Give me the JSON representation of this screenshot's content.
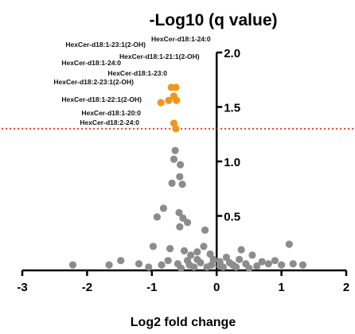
{
  "chart_data": {
    "type": "scatter",
    "title": "-Log10 (q value)",
    "xlabel": "Log2 fold change",
    "ylabel": "",
    "xlim": [
      -3,
      2
    ],
    "ylim": [
      0,
      2.0
    ],
    "x_ticks": [
      "-3",
      "-2",
      "-1",
      "0",
      "1",
      "2"
    ],
    "y_ticks": [
      "0.5",
      "1.0",
      "1.5",
      "2.0"
    ],
    "threshold": 1.3,
    "colors": {
      "significant": "#f0961e",
      "nonsignificant": "#8c8c8c",
      "threshold_line": "#e8402a",
      "axis": "#000000"
    },
    "series": [
      {
        "points": [
          {
            "x": -0.7,
            "y": 1.68
          },
          {
            "x": -0.63,
            "y": 1.68
          },
          {
            "x": -0.66,
            "y": 1.6
          },
          {
            "x": -0.74,
            "y": 1.56
          },
          {
            "x": -0.62,
            "y": 1.56
          },
          {
            "x": -0.86,
            "y": 1.54
          },
          {
            "x": -0.66,
            "y": 1.35
          },
          {
            "x": -0.63,
            "y": 1.3
          }
        ]
      },
      {
        "points": [
          {
            "x": -0.64,
            "y": 1.1
          },
          {
            "x": -0.66,
            "y": 1.02
          },
          {
            "x": -0.56,
            "y": 0.97
          },
          {
            "x": -0.57,
            "y": 0.86
          },
          {
            "x": -0.69,
            "y": 0.8
          },
          {
            "x": -0.53,
            "y": 0.79
          },
          {
            "x": -0.82,
            "y": 0.57
          },
          {
            "x": -0.58,
            "y": 0.53
          },
          {
            "x": -0.52,
            "y": 0.48
          },
          {
            "x": -0.45,
            "y": 0.44
          },
          {
            "x": -0.92,
            "y": 0.49
          },
          {
            "x": -0.57,
            "y": 0.4
          },
          {
            "x": -0.18,
            "y": 0.37
          },
          {
            "x": -0.98,
            "y": 0.22
          },
          {
            "x": -0.72,
            "y": 0.2
          },
          {
            "x": -0.5,
            "y": 0.18
          },
          {
            "x": -0.4,
            "y": 0.14
          },
          {
            "x": -0.3,
            "y": 0.17
          },
          {
            "x": -0.1,
            "y": 0.15
          },
          {
            "x": 0.15,
            "y": 0.12
          },
          {
            "x": 0.35,
            "y": 0.1
          },
          {
            "x": 0.55,
            "y": 0.14
          },
          {
            "x": 0.7,
            "y": 0.08
          },
          {
            "x": 1.12,
            "y": 0.24
          },
          {
            "x": -1.48,
            "y": 0.09
          },
          {
            "x": -1.2,
            "y": 0.06
          },
          {
            "x": -2.22,
            "y": 0.05
          },
          {
            "x": -1.66,
            "y": 0.05
          },
          {
            "x": -0.85,
            "y": 0.05
          },
          {
            "x": -0.6,
            "y": 0.06
          },
          {
            "x": -0.42,
            "y": 0.05
          },
          {
            "x": -0.25,
            "y": 0.07
          },
          {
            "x": -0.08,
            "y": 0.05
          },
          {
            "x": 0.05,
            "y": 0.08
          },
          {
            "x": 0.25,
            "y": 0.05
          },
          {
            "x": 0.45,
            "y": 0.06
          },
          {
            "x": 0.62,
            "y": 0.04
          },
          {
            "x": 0.8,
            "y": 0.06
          },
          {
            "x": 1.0,
            "y": 0.05
          },
          {
            "x": 1.18,
            "y": 0.06
          },
          {
            "x": 1.33,
            "y": 0.05
          },
          {
            "x": -0.35,
            "y": 0.03
          },
          {
            "x": -0.15,
            "y": 0.03
          },
          {
            "x": 0.1,
            "y": 0.03
          },
          {
            "x": 0.3,
            "y": 0.03
          },
          {
            "x": -0.55,
            "y": 0.02
          },
          {
            "x": 0.5,
            "y": 0.02
          },
          {
            "x": -0.05,
            "y": 0.1
          },
          {
            "x": -0.3,
            "y": 0.1
          },
          {
            "x": 0.2,
            "y": 0.07
          },
          {
            "x": -0.75,
            "y": 0.09
          },
          {
            "x": -1.05,
            "y": 0.03
          },
          {
            "x": 0.9,
            "y": 0.09
          },
          {
            "x": 0.38,
            "y": 0.19
          },
          {
            "x": -0.2,
            "y": 0.22
          },
          {
            "x": 0.05,
            "y": 0.04
          },
          {
            "x": -0.45,
            "y": 0.09
          }
        ]
      }
    ],
    "annotations": [
      {
        "text": "HexCer-d18:1-24:0",
        "x": -0.7,
        "y": 1.68
      },
      {
        "text": "HexCer-d18:1-23:1(2-OH)",
        "x": -0.7,
        "y": 1.68
      },
      {
        "text": "HexCer-d18:1-21:1(2-OH)",
        "x": -0.63,
        "y": 1.68
      },
      {
        "text": "HexCer-d18:1-24:0",
        "x": -0.66,
        "y": 1.6
      },
      {
        "text": "HexCer-d18:1-23:0",
        "x": -0.62,
        "y": 1.56
      },
      {
        "text": "HexCer-d18:2-23:1(2-OH)",
        "x": -0.74,
        "y": 1.56
      },
      {
        "text": "HexCer-d18:1-22:1(2-OH)",
        "x": -0.86,
        "y": 1.54
      },
      {
        "text": "HexCer-d18:1-20:0",
        "x": -0.66,
        "y": 1.35
      },
      {
        "text": "HexCer-d18:2-24:0",
        "x": -0.63,
        "y": 1.3
      }
    ]
  }
}
